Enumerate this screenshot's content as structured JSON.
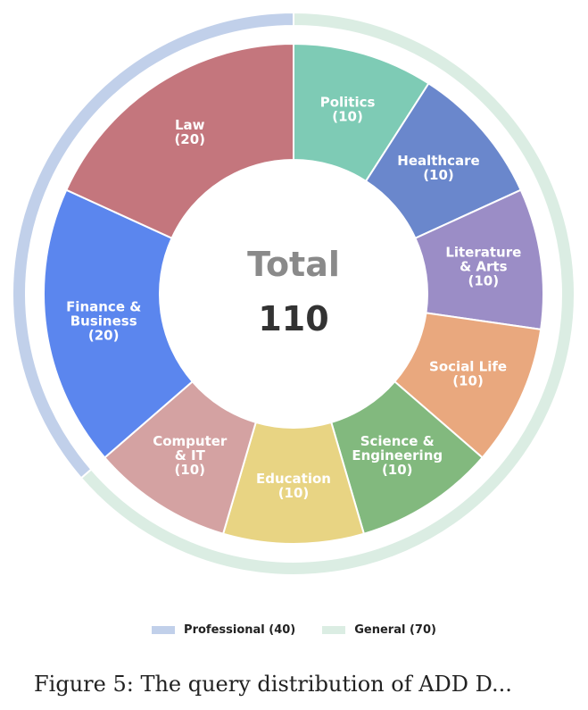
{
  "chart_data": {
    "type": "pie",
    "center": {
      "title": "Total",
      "value": "110"
    },
    "inner_ring": [
      {
        "name": "Politics",
        "label_lines": [
          "Politics",
          "(10)"
        ],
        "value": 10,
        "color": "#7ecbb5"
      },
      {
        "name": "Healthcare",
        "label_lines": [
          "Healthcare",
          "(10)"
        ],
        "value": 10,
        "color": "#6a87cc"
      },
      {
        "name": "Literature & Arts",
        "label_lines": [
          "Literature",
          "& Arts",
          "(10)"
        ],
        "value": 10,
        "color": "#9b8dc6"
      },
      {
        "name": "Social Life",
        "label_lines": [
          "Social Life",
          "(10)"
        ],
        "value": 10,
        "color": "#e9a87e"
      },
      {
        "name": "Science & Engineering",
        "label_lines": [
          "Science &",
          "Engineering",
          "(10)"
        ],
        "value": 10,
        "color": "#82b97e"
      },
      {
        "name": "Education",
        "label_lines": [
          "Education",
          "(10)"
        ],
        "value": 10,
        "color": "#e8d483"
      },
      {
        "name": "Computer & IT",
        "label_lines": [
          "Computer",
          "& IT",
          "(10)"
        ],
        "value": 10,
        "color": "#d4a2a2"
      },
      {
        "name": "Finance & Business",
        "label_lines": [
          "Finance &",
          "Business",
          "(20)"
        ],
        "value": 20,
        "color": "#5b86ee"
      },
      {
        "name": "Law",
        "label_lines": [
          "Law",
          "(20)"
        ],
        "value": 20,
        "color": "#c4767d"
      }
    ],
    "outer_ring": [
      {
        "name": "General",
        "value": 70,
        "color": "#dbede3"
      },
      {
        "name": "Professional",
        "value": 40,
        "color": "#c1d0ea"
      }
    ],
    "legend": [
      {
        "label": "Professional (40)",
        "color": "#c1d0ea"
      },
      {
        "label": "General (70)",
        "color": "#dbede3"
      }
    ],
    "legend_position": "bottom"
  },
  "caption": "Figure 5: The query distribution of ADD D..."
}
